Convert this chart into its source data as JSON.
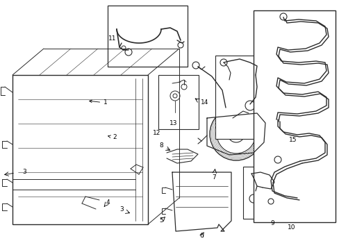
{
  "bg_color": "#ffffff",
  "line_color": "#2a2a2a",
  "figsize": [
    4.89,
    3.6
  ],
  "dpi": 100,
  "font_size": 6.5
}
